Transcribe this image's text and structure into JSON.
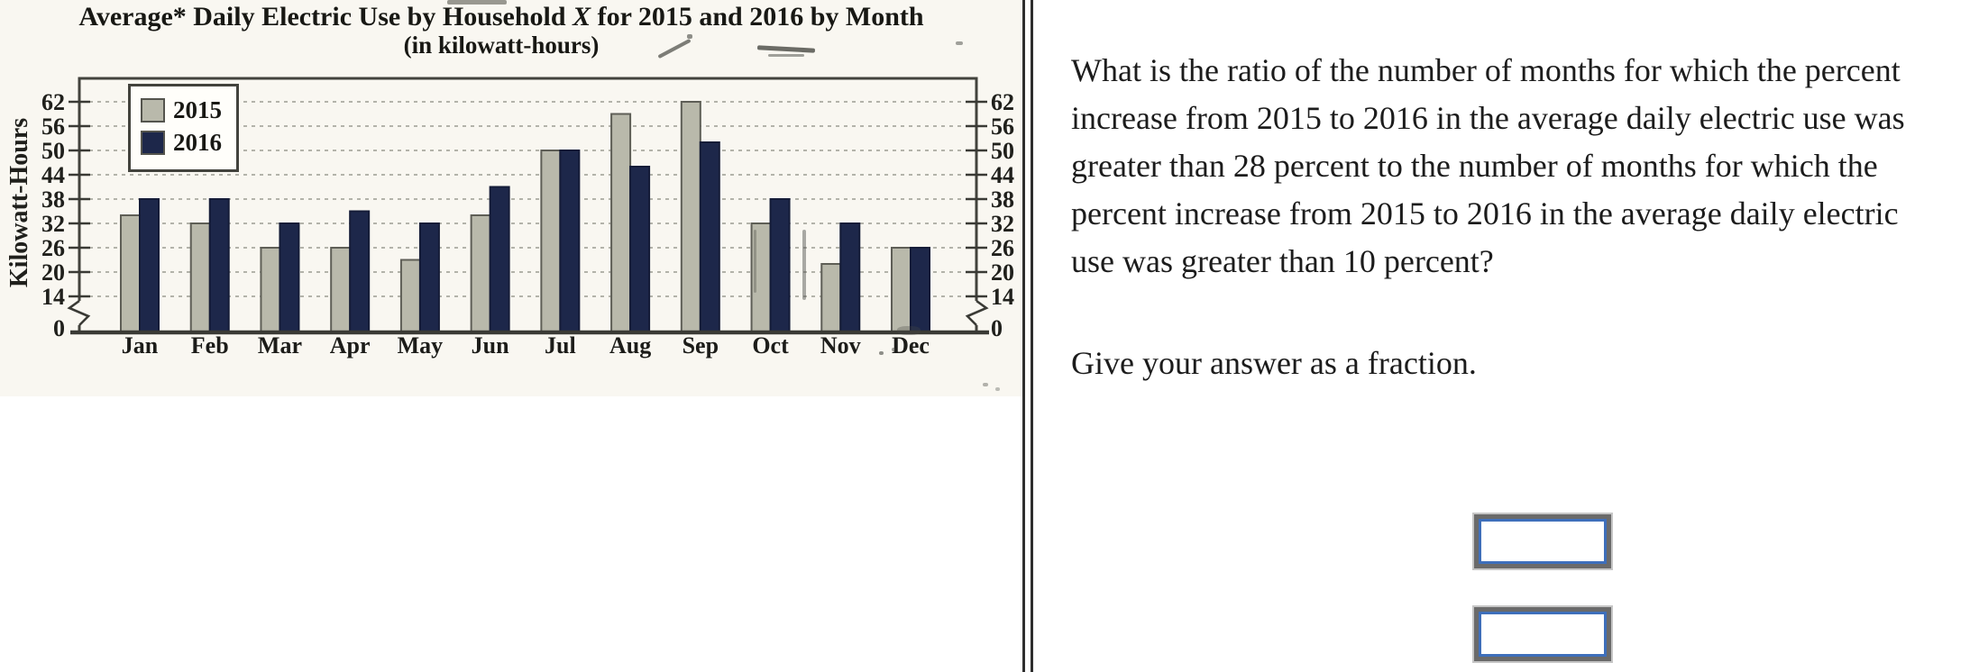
{
  "chart": {
    "title_pre": "Average* Daily Electric Use by Household ",
    "title_x": "X",
    "title_post": " for 2015 and 2016 by Month",
    "subtitle": "(in kilowatt-hours)",
    "y_axis_label": "Kilowatt-Hours"
  },
  "chart_data": {
    "type": "bar",
    "title": "Average* Daily Electric Use by Household X for 2015 and 2016 by Month",
    "subtitle": "(in kilowatt-hours)",
    "xlabel": "",
    "ylabel": "Kilowatt-Hours",
    "categories": [
      "Jan",
      "Feb",
      "Mar",
      "Apr",
      "May",
      "Jun",
      "Jul",
      "Aug",
      "Sep",
      "Oct",
      "Nov",
      "Dec"
    ],
    "series": [
      {
        "name": "2015",
        "color": "#b7b7aa",
        "values": [
          34,
          32,
          26,
          26,
          23,
          34,
          50,
          59,
          62,
          32,
          22,
          26
        ]
      },
      {
        "name": "2016",
        "color": "#202a4c",
        "values": [
          38,
          38,
          32,
          35,
          32,
          41,
          50,
          46,
          52,
          38,
          32,
          26
        ]
      }
    ],
    "yticks": [
      0,
      14,
      20,
      26,
      32,
      38,
      44,
      50,
      56,
      62
    ],
    "ylim": [
      0,
      62
    ],
    "axis_break_between": [
      0,
      14
    ],
    "grid": "dashed horizontal gridlines",
    "legend_position": "inside top-left",
    "tick_labels_on_both_sides": true
  },
  "question": {
    "lines": [
      "What is the ratio of the number of months for which the percent",
      "increase from 2015 to 2016 in the average daily electric use was",
      "greater than 28 percent to the number of months for which the",
      "percent increase from 2015 to 2016 in the average daily electric",
      "use was greater than 10 percent?"
    ],
    "instruction": "Give your answer as a fraction.",
    "numerator_value": "",
    "denominator_value": ""
  }
}
